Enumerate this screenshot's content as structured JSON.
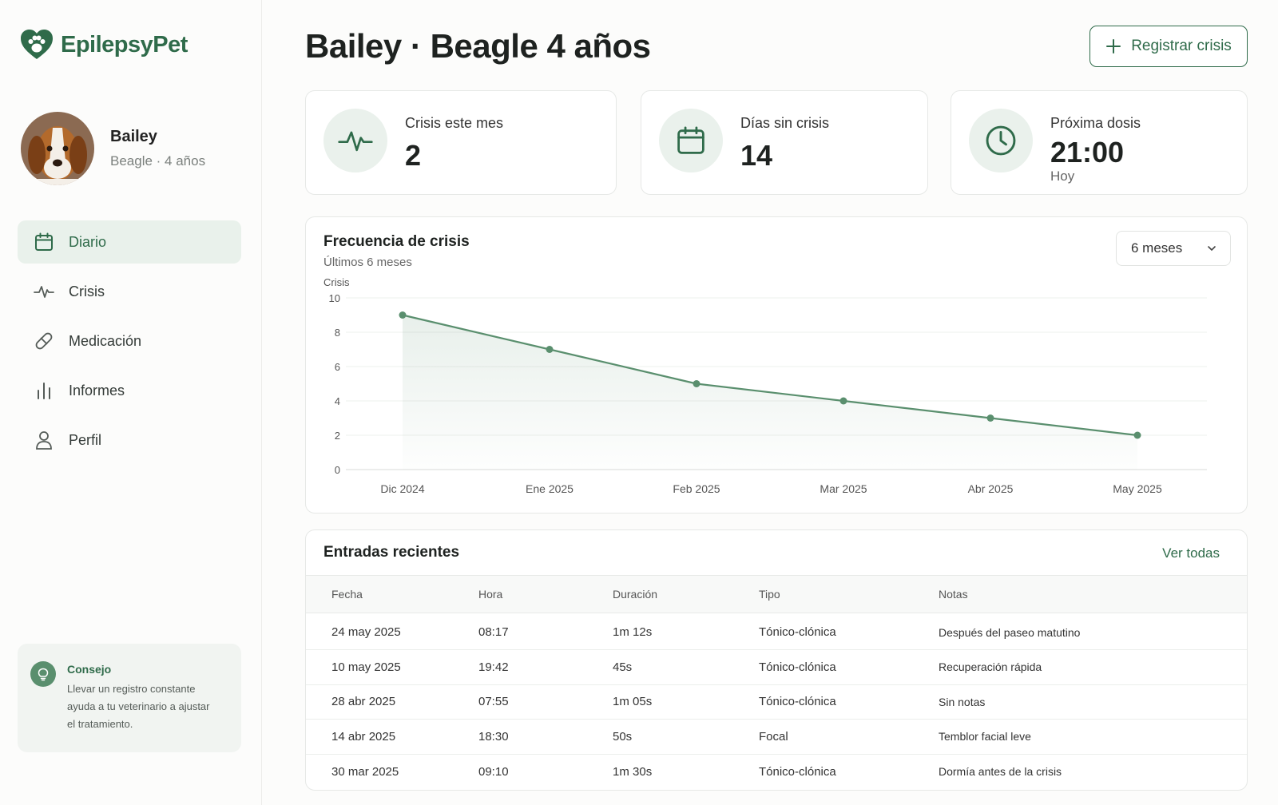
{
  "app": {
    "name": "EpilepsyPet"
  },
  "pet": {
    "name": "Bailey",
    "subtitle": "Beagle · 4 años"
  },
  "nav": [
    {
      "label": "Diario",
      "icon": "calendar-icon",
      "active": true
    },
    {
      "label": "Crisis",
      "icon": "pulse-icon",
      "active": false
    },
    {
      "label": "Medicación",
      "icon": "pill-icon",
      "active": false
    },
    {
      "label": "Informes",
      "icon": "bar-chart-icon",
      "active": false
    },
    {
      "label": "Perfil",
      "icon": "user-icon",
      "active": false
    }
  ],
  "tip": {
    "title": "Consejo",
    "line1": "Llevar un registro constante",
    "line2": "ayuda a tu veterinario a ajustar",
    "line3": "el tratamiento."
  },
  "header": {
    "title": "Bailey · Beagle 4 años",
    "register_button": "Registrar crisis"
  },
  "stats": [
    {
      "label": "Crisis este mes",
      "value": "2",
      "icon": "pulse-icon"
    },
    {
      "label": "Días sin crisis",
      "value": "14",
      "icon": "calendar-icon"
    },
    {
      "label": "Próxima dosis",
      "value": "21:00",
      "sub": "Hoy",
      "icon": "clock-icon"
    }
  ],
  "chart": {
    "title": "Frecuencia de crisis",
    "subtitle": "Últimos 6 meses",
    "range_select": "6 meses"
  },
  "chart_data": {
    "type": "line",
    "categories": [
      "Dic 2024",
      "Ene 2025",
      "Feb 2025",
      "Mar 2025",
      "Abr 2025",
      "May 2025"
    ],
    "series": [
      {
        "values": [
          9,
          7,
          5,
          4,
          3,
          2
        ]
      }
    ],
    "ylabel": "Crisis",
    "ylim": [
      0,
      10
    ],
    "yticks": [
      0,
      2,
      4,
      6,
      8,
      10
    ],
    "grid": true,
    "color": "#5a8f6e"
  },
  "table": {
    "title": "Entradas recientes",
    "view_all": "Ver todas",
    "columns": [
      "Fecha",
      "Hora",
      "Duración",
      "Tipo",
      "Notas"
    ],
    "rows": [
      [
        "24 may 2025",
        "08:17",
        "1m 12s",
        "Tónico-clónica",
        "Después del paseo matutino"
      ],
      [
        "10 may 2025",
        "19:42",
        "45s",
        "Tónico-clónica",
        "Recuperación rápida"
      ],
      [
        "28 abr 2025",
        "07:55",
        "1m 05s",
        "Tónico-clónica",
        "Sin notas"
      ],
      [
        "14 abr 2025",
        "18:30",
        "50s",
        "Focal",
        "Temblor facial leve"
      ],
      [
        "30 mar 2025",
        "09:10",
        "1m 30s",
        "Tónico-clónica",
        "Dormía antes de la crisis"
      ]
    ]
  },
  "colors": {
    "accent": "#2f6b4a",
    "accent_soft": "#e9f1eb",
    "line": "#5a8f6e"
  }
}
